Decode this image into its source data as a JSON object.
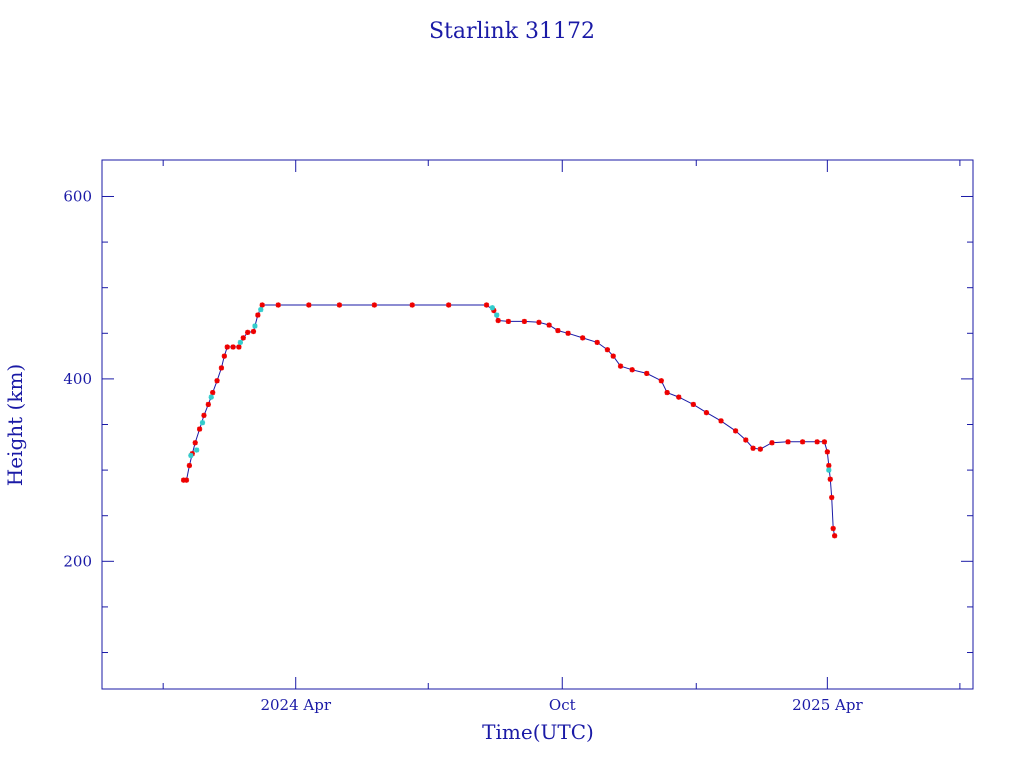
{
  "chart_data": {
    "type": "scatter",
    "title": "Starlink 31172",
    "xlabel": "Time(UTC)",
    "ylabel": "Height (km)",
    "x_axis": {
      "unit": "date",
      "range": [
        "2023-11-20",
        "2025-07-10"
      ],
      "labeled_ticks": [
        {
          "date": "2024-04-01",
          "label": "2024 Apr"
        },
        {
          "date": "2024-10-01",
          "label": "Oct"
        },
        {
          "date": "2025-04-01",
          "label": "2025 Apr"
        }
      ],
      "minor_ticks": [
        "2024-01-01",
        "2024-07-01",
        "2025-01-01",
        "2025-07-01"
      ]
    },
    "y_axis": {
      "range": [
        60,
        640
      ],
      "labeled_ticks": [
        200,
        400,
        600
      ],
      "minor_ticks": [
        100,
        150,
        250,
        300,
        350,
        450,
        500,
        550
      ]
    },
    "grid": false,
    "colors": {
      "frame": "#1a1aa6",
      "points": "#ee0000",
      "points_alt": "#33cccc",
      "line": "#1a1aa6"
    },
    "series": [
      {
        "marker_color": "#ee0000",
        "points": [
          [
            "2024-01-15",
            289
          ],
          [
            "2024-01-17",
            289
          ],
          [
            "2024-01-19",
            305
          ],
          [
            "2024-01-21",
            318
          ],
          [
            "2024-01-23",
            330
          ],
          [
            "2024-01-26",
            345
          ],
          [
            "2024-01-29",
            360
          ],
          [
            "2024-02-01",
            372
          ],
          [
            "2024-02-04",
            385
          ],
          [
            "2024-02-07",
            398
          ],
          [
            "2024-02-10",
            412
          ],
          [
            "2024-02-12",
            425
          ],
          [
            "2024-02-14",
            435
          ],
          [
            "2024-02-18",
            435
          ],
          [
            "2024-02-22",
            435
          ],
          [
            "2024-02-25",
            445
          ],
          [
            "2024-02-28",
            451
          ],
          [
            "2024-03-03",
            452
          ],
          [
            "2024-03-06",
            470
          ],
          [
            "2024-03-09",
            481
          ],
          [
            "2024-03-20",
            481
          ],
          [
            "2024-04-10",
            481
          ],
          [
            "2024-05-01",
            481
          ],
          [
            "2024-05-25",
            481
          ],
          [
            "2024-06-20",
            481
          ],
          [
            "2024-07-15",
            481
          ],
          [
            "2024-08-10",
            481
          ],
          [
            "2024-08-15",
            475
          ],
          [
            "2024-08-18",
            464
          ],
          [
            "2024-08-25",
            463
          ],
          [
            "2024-09-05",
            463
          ],
          [
            "2024-09-15",
            462
          ],
          [
            "2024-09-22",
            459
          ],
          [
            "2024-09-28",
            453
          ],
          [
            "2024-10-05",
            450
          ],
          [
            "2024-10-15",
            445
          ],
          [
            "2024-10-25",
            440
          ],
          [
            "2024-11-01",
            432
          ],
          [
            "2024-11-05",
            425
          ],
          [
            "2024-11-10",
            414
          ],
          [
            "2024-11-18",
            410
          ],
          [
            "2024-11-28",
            406
          ],
          [
            "2024-12-08",
            398
          ],
          [
            "2024-12-12",
            385
          ],
          [
            "2024-12-20",
            380
          ],
          [
            "2024-12-30",
            372
          ],
          [
            "2025-01-08",
            363
          ],
          [
            "2025-01-18",
            354
          ],
          [
            "2025-01-28",
            343
          ],
          [
            "2025-02-04",
            333
          ],
          [
            "2025-02-09",
            324
          ],
          [
            "2025-02-14",
            323
          ],
          [
            "2025-02-22",
            330
          ],
          [
            "2025-03-05",
            331
          ],
          [
            "2025-03-15",
            331
          ],
          [
            "2025-03-25",
            331
          ],
          [
            "2025-03-30",
            331
          ],
          [
            "2025-04-01",
            320
          ],
          [
            "2025-04-02",
            305
          ],
          [
            "2025-04-03",
            290
          ],
          [
            "2025-04-04",
            270
          ],
          [
            "2025-04-05",
            236
          ],
          [
            "2025-04-06",
            228
          ]
        ]
      },
      {
        "marker_color": "#33cccc",
        "points": [
          [
            "2024-01-20",
            316
          ],
          [
            "2024-01-24",
            322
          ],
          [
            "2024-01-28",
            352
          ],
          [
            "2024-02-03",
            380
          ],
          [
            "2024-02-23",
            440
          ],
          [
            "2024-03-04",
            458
          ],
          [
            "2024-03-08",
            476
          ],
          [
            "2024-08-14",
            478
          ],
          [
            "2024-08-17",
            470
          ],
          [
            "2025-04-02",
            300
          ]
        ]
      }
    ]
  }
}
